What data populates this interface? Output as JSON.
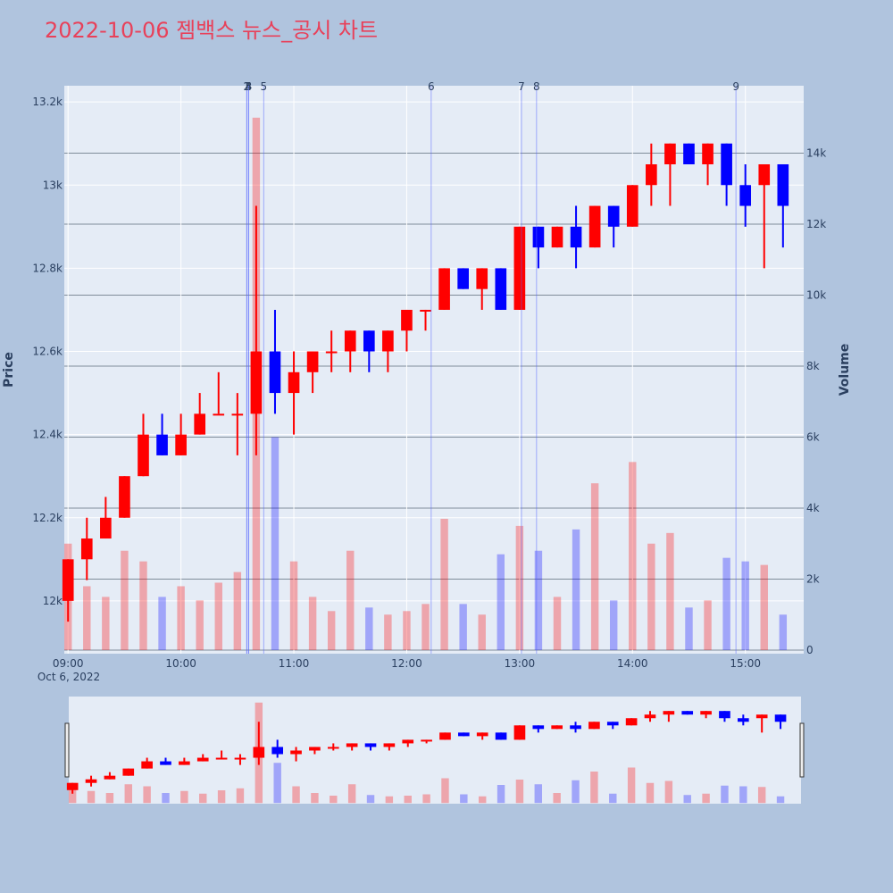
{
  "chart_data": {
    "type": "candlestick",
    "title": "2022-10-06 젬백스 뉴스_공시 차트",
    "y_label": "Price",
    "y2_label": "Volume",
    "x_date_label": "Oct 6, 2022",
    "increasing_color": "#ff0000",
    "decreasing_color": "#0000ff",
    "xlim": [
      "08:58",
      "15:31"
    ],
    "xticks": [
      "09:00",
      "10:00",
      "11:00",
      "12:00",
      "13:00",
      "14:00",
      "15:00"
    ],
    "ylim": [
      11873,
      13239
    ],
    "yticks": [
      {
        "value": 12000,
        "label": "12k"
      },
      {
        "value": 12200,
        "label": "12.2k"
      },
      {
        "value": 12400,
        "label": "12.4k"
      },
      {
        "value": 12600,
        "label": "12.6k"
      },
      {
        "value": 12800,
        "label": "12.8k"
      },
      {
        "value": 13000,
        "label": "13k"
      },
      {
        "value": 13200,
        "label": "13.2k"
      }
    ],
    "y2lim": [
      -100,
      15900
    ],
    "y2ticks": [
      0,
      {
        "value": 2000,
        "label": "2k"
      },
      {
        "value": 4000,
        "label": "4k"
      },
      {
        "value": 6000,
        "label": "6k"
      },
      {
        "value": 8000,
        "label": "8k"
      },
      {
        "value": 10000,
        "label": "10k"
      },
      {
        "value": 12000,
        "label": "12k"
      },
      {
        "value": 14000,
        "label": "14k"
      }
    ],
    "grid": true,
    "x": [
      "09:00",
      "09:10",
      "09:20",
      "09:30",
      "09:40",
      "09:50",
      "10:00",
      "10:10",
      "10:20",
      "10:30",
      "10:40",
      "10:50",
      "11:00",
      "11:10",
      "11:20",
      "11:30",
      "11:40",
      "11:50",
      "12:00",
      "12:10",
      "12:20",
      "12:30",
      "12:40",
      "12:50",
      "13:00",
      "13:10",
      "13:20",
      "13:30",
      "13:40",
      "13:50",
      "14:00",
      "14:10",
      "14:20",
      "14:30",
      "14:40",
      "14:50",
      "15:00",
      "15:10",
      "15:20"
    ],
    "open": [
      12000,
      12100,
      12150,
      12200,
      12300,
      12400,
      12350,
      12400,
      12450,
      12450,
      12450,
      12600,
      12500,
      12550,
      12600,
      12600,
      12650,
      12600,
      12650,
      12700,
      12700,
      12800,
      12750,
      12800,
      12700,
      12900,
      12850,
      12900,
      12850,
      12950,
      12900,
      13000,
      13050,
      13100,
      13050,
      13100,
      13000,
      13000,
      13050
    ],
    "high": [
      12100,
      12200,
      12250,
      12300,
      12450,
      12450,
      12450,
      12500,
      12550,
      12500,
      12950,
      12700,
      12600,
      12600,
      12650,
      12650,
      12650,
      12650,
      12700,
      12700,
      12800,
      12800,
      12800,
      12800,
      12900,
      12900,
      12900,
      12950,
      12950,
      12950,
      13000,
      13100,
      13100,
      13100,
      13100,
      13100,
      13050,
      13050,
      13050
    ],
    "low": [
      11950,
      12050,
      12150,
      12200,
      12300,
      12350,
      12350,
      12400,
      12450,
      12350,
      12350,
      12450,
      12400,
      12500,
      12550,
      12550,
      12550,
      12550,
      12600,
      12650,
      12700,
      12750,
      12700,
      12700,
      12700,
      12800,
      12850,
      12800,
      12850,
      12850,
      12900,
      12950,
      12950,
      13050,
      13000,
      12950,
      12900,
      12800,
      12850
    ],
    "close": [
      12100,
      12150,
      12200,
      12300,
      12400,
      12350,
      12400,
      12450,
      12450,
      12450,
      12600,
      12500,
      12550,
      12600,
      12600,
      12650,
      12600,
      12650,
      12700,
      12700,
      12800,
      12750,
      12800,
      12700,
      12900,
      12850,
      12900,
      12850,
      12950,
      12900,
      13000,
      13050,
      13100,
      13050,
      13100,
      13000,
      12950,
      13050,
      12950
    ],
    "volume": [
      3000,
      1800,
      1500,
      2800,
      2500,
      1500,
      1800,
      1400,
      1900,
      2200,
      15000,
      6000,
      2500,
      1500,
      1100,
      2800,
      1200,
      1000,
      1100,
      1300,
      3700,
      1300,
      1000,
      2700,
      3500,
      2800,
      1500,
      3400,
      4700,
      1400,
      5300,
      3000,
      3300,
      1200,
      1400,
      2600,
      2500,
      2400,
      1000
    ],
    "annotations": [
      {
        "x": "10:35",
        "label": "1"
      },
      {
        "x": "10:35",
        "label": "2"
      },
      {
        "x": "10:36",
        "label": "3"
      },
      {
        "x": "10:36",
        "label": "4"
      },
      {
        "x": "10:44",
        "label": "5"
      },
      {
        "x": "12:13",
        "label": "6"
      },
      {
        "x": "13:01",
        "label": "7"
      },
      {
        "x": "13:09",
        "label": "8"
      },
      {
        "x": "14:55",
        "label": "9"
      }
    ]
  }
}
